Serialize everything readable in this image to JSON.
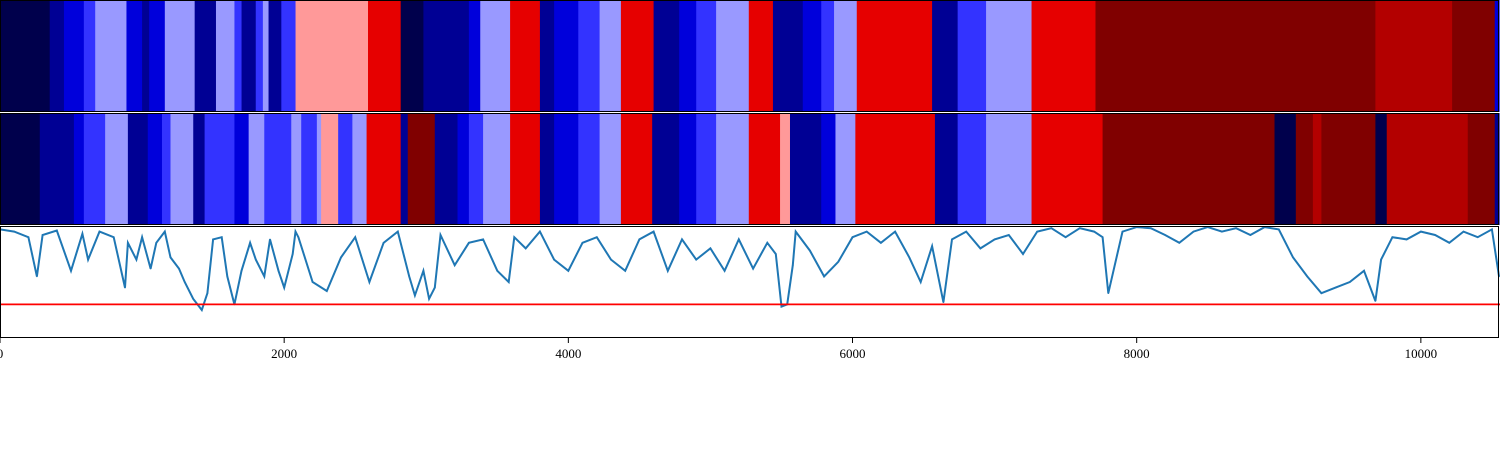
{
  "chart_data": {
    "type": "heatmap",
    "title": "",
    "xlabel": "",
    "ylabel": "",
    "xlim": [
      0,
      10550
    ],
    "xticks": [
      0,
      2000,
      4000,
      6000,
      8000,
      10000
    ],
    "colormap": "seismic",
    "panels": [
      {
        "name": "",
        "type": "heatmap",
        "cmap_range": [
          0,
          10
        ],
        "segments": [
          [
            0,
            350,
            0
          ],
          [
            350,
            450,
            1
          ],
          [
            450,
            590,
            2
          ],
          [
            590,
            670,
            3
          ],
          [
            670,
            890,
            4
          ],
          [
            890,
            1000,
            2
          ],
          [
            1000,
            1050,
            1
          ],
          [
            1050,
            1160,
            2
          ],
          [
            1160,
            1370,
            4
          ],
          [
            1370,
            1520,
            1
          ],
          [
            1520,
            1650,
            4
          ],
          [
            1650,
            1700,
            3
          ],
          [
            1700,
            1800,
            1
          ],
          [
            1800,
            1850,
            3
          ],
          [
            1850,
            1890,
            4
          ],
          [
            1890,
            1980,
            1
          ],
          [
            1980,
            2080,
            3
          ],
          [
            2080,
            2590,
            6
          ],
          [
            2590,
            2820,
            8
          ],
          [
            2820,
            2980,
            0
          ],
          [
            2980,
            3300,
            1
          ],
          [
            3300,
            3380,
            2
          ],
          [
            3380,
            3590,
            4
          ],
          [
            3590,
            3800,
            8
          ],
          [
            3800,
            3900,
            1
          ],
          [
            3900,
            4070,
            2
          ],
          [
            4070,
            4220,
            3
          ],
          [
            4220,
            4370,
            4
          ],
          [
            4370,
            4600,
            8
          ],
          [
            4600,
            4780,
            1
          ],
          [
            4780,
            4900,
            2
          ],
          [
            4900,
            5040,
            3
          ],
          [
            5040,
            5270,
            4
          ],
          [
            5270,
            5440,
            8
          ],
          [
            5440,
            5650,
            1
          ],
          [
            5650,
            5780,
            2
          ],
          [
            5780,
            5870,
            3
          ],
          [
            5870,
            6030,
            4
          ],
          [
            6030,
            6560,
            8
          ],
          [
            6560,
            6740,
            1
          ],
          [
            6740,
            6940,
            3
          ],
          [
            6940,
            7260,
            4
          ],
          [
            7260,
            7710,
            8
          ],
          [
            7710,
            9680,
            10
          ],
          [
            9680,
            10220,
            9
          ],
          [
            10220,
            10520,
            10
          ],
          [
            10520,
            10550,
            2
          ]
        ]
      },
      {
        "name": "",
        "type": "heatmap",
        "cmap_range": [
          0,
          10
        ],
        "segments": [
          [
            0,
            280,
            0
          ],
          [
            280,
            520,
            1
          ],
          [
            520,
            590,
            2
          ],
          [
            590,
            740,
            3
          ],
          [
            740,
            900,
            4
          ],
          [
            900,
            1040,
            1
          ],
          [
            1040,
            1140,
            2
          ],
          [
            1140,
            1200,
            3
          ],
          [
            1200,
            1360,
            4
          ],
          [
            1360,
            1440,
            1
          ],
          [
            1440,
            1650,
            3
          ],
          [
            1650,
            1750,
            2
          ],
          [
            1750,
            1860,
            4
          ],
          [
            1860,
            2050,
            3
          ],
          [
            2050,
            2120,
            4
          ],
          [
            2120,
            2230,
            3
          ],
          [
            2230,
            2260,
            4
          ],
          [
            2260,
            2380,
            6
          ],
          [
            2380,
            2480,
            3
          ],
          [
            2480,
            2580,
            4
          ],
          [
            2580,
            2820,
            8
          ],
          [
            2820,
            2870,
            1
          ],
          [
            2870,
            3060,
            10
          ],
          [
            3060,
            3220,
            1
          ],
          [
            3220,
            3300,
            2
          ],
          [
            3300,
            3400,
            3
          ],
          [
            3400,
            3590,
            4
          ],
          [
            3590,
            3800,
            8
          ],
          [
            3800,
            3900,
            1
          ],
          [
            3900,
            4070,
            2
          ],
          [
            4070,
            4220,
            3
          ],
          [
            4220,
            4370,
            4
          ],
          [
            4370,
            4590,
            8
          ],
          [
            4590,
            4780,
            1
          ],
          [
            4780,
            4900,
            2
          ],
          [
            4900,
            5040,
            3
          ],
          [
            5040,
            5270,
            4
          ],
          [
            5270,
            5490,
            8
          ],
          [
            5490,
            5560,
            6
          ],
          [
            5560,
            5780,
            1
          ],
          [
            5780,
            5880,
            2
          ],
          [
            5880,
            6020,
            4
          ],
          [
            6020,
            6580,
            8
          ],
          [
            6580,
            6740,
            1
          ],
          [
            6740,
            6940,
            3
          ],
          [
            6940,
            7260,
            4
          ],
          [
            7260,
            7760,
            8
          ],
          [
            7760,
            8970,
            10
          ],
          [
            8970,
            9120,
            0
          ],
          [
            9120,
            9240,
            10
          ],
          [
            9240,
            9300,
            9
          ],
          [
            9300,
            9420,
            10
          ],
          [
            9420,
            9680,
            10
          ],
          [
            9680,
            9760,
            0
          ],
          [
            9760,
            10330,
            9
          ],
          [
            10330,
            10520,
            10
          ],
          [
            10520,
            10550,
            1
          ]
        ]
      },
      {
        "name": "",
        "type": "line",
        "color": "#1f77b4",
        "ylim": [
          0,
          1
        ],
        "threshold": {
          "value": 0.3,
          "color": "#ff0000"
        },
        "x": [
          0,
          100,
          200,
          260,
          300,
          400,
          500,
          580,
          620,
          700,
          800,
          880,
          900,
          960,
          1000,
          1060,
          1100,
          1160,
          1200,
          1260,
          1300,
          1360,
          1420,
          1460,
          1500,
          1560,
          1600,
          1650,
          1700,
          1760,
          1800,
          1860,
          1900,
          1960,
          2000,
          2060,
          2080,
          2100,
          2200,
          2300,
          2400,
          2500,
          2600,
          2700,
          2800,
          2880,
          2920,
          2980,
          3020,
          3060,
          3100,
          3200,
          3300,
          3400,
          3500,
          3580,
          3620,
          3700,
          3800,
          3900,
          4000,
          4100,
          4200,
          4300,
          4400,
          4500,
          4600,
          4700,
          4800,
          4900,
          5000,
          5100,
          5200,
          5300,
          5400,
          5460,
          5500,
          5540,
          5580,
          5600,
          5700,
          5800,
          5900,
          6000,
          6100,
          6200,
          6300,
          6400,
          6480,
          6560,
          6640,
          6700,
          6800,
          6900,
          7000,
          7100,
          7200,
          7300,
          7400,
          7500,
          7600,
          7700,
          7760,
          7800,
          7900,
          8000,
          8100,
          8200,
          8300,
          8400,
          8500,
          8600,
          8700,
          8800,
          8900,
          9000,
          9100,
          9200,
          9300,
          9400,
          9500,
          9600,
          9680,
          9720,
          9800,
          9900,
          10000,
          10100,
          10200,
          10300,
          10400,
          10500,
          10550
        ],
        "y": [
          0.97,
          0.95,
          0.9,
          0.55,
          0.92,
          0.96,
          0.6,
          0.93,
          0.7,
          0.95,
          0.9,
          0.45,
          0.85,
          0.7,
          0.9,
          0.62,
          0.85,
          0.95,
          0.72,
          0.62,
          0.5,
          0.35,
          0.25,
          0.4,
          0.88,
          0.9,
          0.55,
          0.3,
          0.6,
          0.85,
          0.7,
          0.55,
          0.88,
          0.6,
          0.45,
          0.75,
          0.95,
          0.9,
          0.5,
          0.42,
          0.72,
          0.9,
          0.5,
          0.85,
          0.95,
          0.55,
          0.38,
          0.6,
          0.35,
          0.45,
          0.92,
          0.65,
          0.85,
          0.88,
          0.6,
          0.5,
          0.9,
          0.8,
          0.95,
          0.7,
          0.6,
          0.85,
          0.9,
          0.7,
          0.6,
          0.88,
          0.95,
          0.6,
          0.88,
          0.7,
          0.8,
          0.6,
          0.88,
          0.62,
          0.85,
          0.75,
          0.28,
          0.3,
          0.65,
          0.95,
          0.78,
          0.55,
          0.68,
          0.9,
          0.95,
          0.85,
          0.95,
          0.72,
          0.5,
          0.82,
          0.32,
          0.88,
          0.95,
          0.8,
          0.88,
          0.92,
          0.75,
          0.95,
          0.98,
          0.9,
          0.98,
          0.95,
          0.9,
          0.4,
          0.95,
          0.99,
          0.98,
          0.92,
          0.85,
          0.95,
          0.99,
          0.95,
          0.98,
          0.92,
          0.99,
          0.97,
          0.72,
          0.55,
          0.4,
          0.45,
          0.5,
          0.6,
          0.33,
          0.7,
          0.9,
          0.88,
          0.95,
          0.92,
          0.85,
          0.95,
          0.9,
          0.97,
          0.55
        ]
      }
    ]
  }
}
